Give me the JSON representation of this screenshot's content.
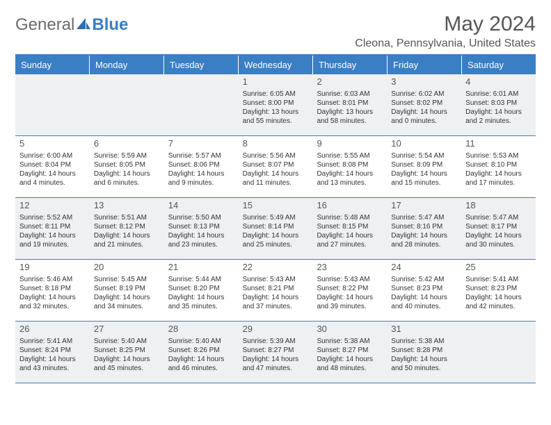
{
  "logo": {
    "text1": "General",
    "text2": "Blue"
  },
  "title": "May 2024",
  "location": "Cleona, Pennsylvania, United States",
  "colors": {
    "header_bg": "#3a7fc4",
    "header_text": "#ffffff",
    "border": "#3a7fc4",
    "shaded_cell": "#eef0f2",
    "body_text": "#333333",
    "title_text": "#555555"
  },
  "day_headers": [
    "Sunday",
    "Monday",
    "Tuesday",
    "Wednesday",
    "Thursday",
    "Friday",
    "Saturday"
  ],
  "weeks": [
    [
      {
        "day": "",
        "sunrise": "",
        "sunset": "",
        "daylight1": "",
        "daylight2": ""
      },
      {
        "day": "",
        "sunrise": "",
        "sunset": "",
        "daylight1": "",
        "daylight2": ""
      },
      {
        "day": "",
        "sunrise": "",
        "sunset": "",
        "daylight1": "",
        "daylight2": ""
      },
      {
        "day": "1",
        "sunrise": "Sunrise: 6:05 AM",
        "sunset": "Sunset: 8:00 PM",
        "daylight1": "Daylight: 13 hours",
        "daylight2": "and 55 minutes."
      },
      {
        "day": "2",
        "sunrise": "Sunrise: 6:03 AM",
        "sunset": "Sunset: 8:01 PM",
        "daylight1": "Daylight: 13 hours",
        "daylight2": "and 58 minutes."
      },
      {
        "day": "3",
        "sunrise": "Sunrise: 6:02 AM",
        "sunset": "Sunset: 8:02 PM",
        "daylight1": "Daylight: 14 hours",
        "daylight2": "and 0 minutes."
      },
      {
        "day": "4",
        "sunrise": "Sunrise: 6:01 AM",
        "sunset": "Sunset: 8:03 PM",
        "daylight1": "Daylight: 14 hours",
        "daylight2": "and 2 minutes."
      }
    ],
    [
      {
        "day": "5",
        "sunrise": "Sunrise: 6:00 AM",
        "sunset": "Sunset: 8:04 PM",
        "daylight1": "Daylight: 14 hours",
        "daylight2": "and 4 minutes."
      },
      {
        "day": "6",
        "sunrise": "Sunrise: 5:59 AM",
        "sunset": "Sunset: 8:05 PM",
        "daylight1": "Daylight: 14 hours",
        "daylight2": "and 6 minutes."
      },
      {
        "day": "7",
        "sunrise": "Sunrise: 5:57 AM",
        "sunset": "Sunset: 8:06 PM",
        "daylight1": "Daylight: 14 hours",
        "daylight2": "and 9 minutes."
      },
      {
        "day": "8",
        "sunrise": "Sunrise: 5:56 AM",
        "sunset": "Sunset: 8:07 PM",
        "daylight1": "Daylight: 14 hours",
        "daylight2": "and 11 minutes."
      },
      {
        "day": "9",
        "sunrise": "Sunrise: 5:55 AM",
        "sunset": "Sunset: 8:08 PM",
        "daylight1": "Daylight: 14 hours",
        "daylight2": "and 13 minutes."
      },
      {
        "day": "10",
        "sunrise": "Sunrise: 5:54 AM",
        "sunset": "Sunset: 8:09 PM",
        "daylight1": "Daylight: 14 hours",
        "daylight2": "and 15 minutes."
      },
      {
        "day": "11",
        "sunrise": "Sunrise: 5:53 AM",
        "sunset": "Sunset: 8:10 PM",
        "daylight1": "Daylight: 14 hours",
        "daylight2": "and 17 minutes."
      }
    ],
    [
      {
        "day": "12",
        "sunrise": "Sunrise: 5:52 AM",
        "sunset": "Sunset: 8:11 PM",
        "daylight1": "Daylight: 14 hours",
        "daylight2": "and 19 minutes."
      },
      {
        "day": "13",
        "sunrise": "Sunrise: 5:51 AM",
        "sunset": "Sunset: 8:12 PM",
        "daylight1": "Daylight: 14 hours",
        "daylight2": "and 21 minutes."
      },
      {
        "day": "14",
        "sunrise": "Sunrise: 5:50 AM",
        "sunset": "Sunset: 8:13 PM",
        "daylight1": "Daylight: 14 hours",
        "daylight2": "and 23 minutes."
      },
      {
        "day": "15",
        "sunrise": "Sunrise: 5:49 AM",
        "sunset": "Sunset: 8:14 PM",
        "daylight1": "Daylight: 14 hours",
        "daylight2": "and 25 minutes."
      },
      {
        "day": "16",
        "sunrise": "Sunrise: 5:48 AM",
        "sunset": "Sunset: 8:15 PM",
        "daylight1": "Daylight: 14 hours",
        "daylight2": "and 27 minutes."
      },
      {
        "day": "17",
        "sunrise": "Sunrise: 5:47 AM",
        "sunset": "Sunset: 8:16 PM",
        "daylight1": "Daylight: 14 hours",
        "daylight2": "and 28 minutes."
      },
      {
        "day": "18",
        "sunrise": "Sunrise: 5:47 AM",
        "sunset": "Sunset: 8:17 PM",
        "daylight1": "Daylight: 14 hours",
        "daylight2": "and 30 minutes."
      }
    ],
    [
      {
        "day": "19",
        "sunrise": "Sunrise: 5:46 AM",
        "sunset": "Sunset: 8:18 PM",
        "daylight1": "Daylight: 14 hours",
        "daylight2": "and 32 minutes."
      },
      {
        "day": "20",
        "sunrise": "Sunrise: 5:45 AM",
        "sunset": "Sunset: 8:19 PM",
        "daylight1": "Daylight: 14 hours",
        "daylight2": "and 34 minutes."
      },
      {
        "day": "21",
        "sunrise": "Sunrise: 5:44 AM",
        "sunset": "Sunset: 8:20 PM",
        "daylight1": "Daylight: 14 hours",
        "daylight2": "and 35 minutes."
      },
      {
        "day": "22",
        "sunrise": "Sunrise: 5:43 AM",
        "sunset": "Sunset: 8:21 PM",
        "daylight1": "Daylight: 14 hours",
        "daylight2": "and 37 minutes."
      },
      {
        "day": "23",
        "sunrise": "Sunrise: 5:43 AM",
        "sunset": "Sunset: 8:22 PM",
        "daylight1": "Daylight: 14 hours",
        "daylight2": "and 39 minutes."
      },
      {
        "day": "24",
        "sunrise": "Sunrise: 5:42 AM",
        "sunset": "Sunset: 8:23 PM",
        "daylight1": "Daylight: 14 hours",
        "daylight2": "and 40 minutes."
      },
      {
        "day": "25",
        "sunrise": "Sunrise: 5:41 AM",
        "sunset": "Sunset: 8:23 PM",
        "daylight1": "Daylight: 14 hours",
        "daylight2": "and 42 minutes."
      }
    ],
    [
      {
        "day": "26",
        "sunrise": "Sunrise: 5:41 AM",
        "sunset": "Sunset: 8:24 PM",
        "daylight1": "Daylight: 14 hours",
        "daylight2": "and 43 minutes."
      },
      {
        "day": "27",
        "sunrise": "Sunrise: 5:40 AM",
        "sunset": "Sunset: 8:25 PM",
        "daylight1": "Daylight: 14 hours",
        "daylight2": "and 45 minutes."
      },
      {
        "day": "28",
        "sunrise": "Sunrise: 5:40 AM",
        "sunset": "Sunset: 8:26 PM",
        "daylight1": "Daylight: 14 hours",
        "daylight2": "and 46 minutes."
      },
      {
        "day": "29",
        "sunrise": "Sunrise: 5:39 AM",
        "sunset": "Sunset: 8:27 PM",
        "daylight1": "Daylight: 14 hours",
        "daylight2": "and 47 minutes."
      },
      {
        "day": "30",
        "sunrise": "Sunrise: 5:38 AM",
        "sunset": "Sunset: 8:27 PM",
        "daylight1": "Daylight: 14 hours",
        "daylight2": "and 48 minutes."
      },
      {
        "day": "31",
        "sunrise": "Sunrise: 5:38 AM",
        "sunset": "Sunset: 8:28 PM",
        "daylight1": "Daylight: 14 hours",
        "daylight2": "and 50 minutes."
      },
      {
        "day": "",
        "sunrise": "",
        "sunset": "",
        "daylight1": "",
        "daylight2": ""
      }
    ]
  ]
}
